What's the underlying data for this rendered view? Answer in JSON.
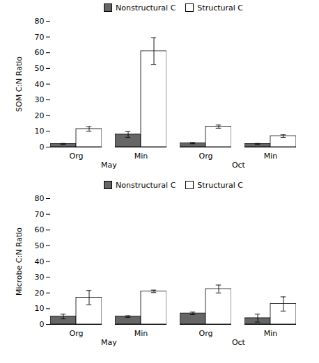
{
  "chart_data": [
    {
      "type": "bar",
      "ylabel": "SOM C:N Ratio",
      "categories": [
        "Org",
        "Min",
        "Org",
        "Min"
      ],
      "category_groups": [
        {
          "label": "May",
          "categories": [
            "Org",
            "Min"
          ]
        },
        {
          "label": "Oct",
          "categories": [
            "Org",
            "Min"
          ]
        }
      ],
      "series": [
        {
          "name": "Nonstructural C",
          "color": "#666666",
          "values": [
            2.0,
            8.0,
            2.5,
            2.0
          ],
          "errors": [
            0.3,
            1.8,
            0.4,
            0.3
          ]
        },
        {
          "name": "Structural C",
          "color": "#ffffff",
          "values": [
            11.5,
            61.0,
            13.0,
            7.0
          ],
          "errors": [
            1.5,
            8.5,
            1.0,
            0.8
          ]
        }
      ],
      "ylim": [
        0,
        80
      ],
      "yticks": [
        0,
        10,
        20,
        30,
        40,
        50,
        60,
        70,
        80
      ],
      "grid": false,
      "legend": "upper center"
    },
    {
      "type": "bar",
      "ylabel": "Microbe C:N Ratio",
      "categories": [
        "Org",
        "Min",
        "Org",
        "Min"
      ],
      "category_groups": [
        {
          "label": "May",
          "categories": [
            "Org",
            "Min"
          ]
        },
        {
          "label": "Oct",
          "categories": [
            "Org",
            "Min"
          ]
        }
      ],
      "series": [
        {
          "name": "Nonstructural C",
          "color": "#666666",
          "values": [
            5.0,
            5.0,
            7.0,
            4.0
          ],
          "errors": [
            1.5,
            0.5,
            0.8,
            2.5
          ]
        },
        {
          "name": "Structural C",
          "color": "#ffffff",
          "values": [
            17.0,
            21.0,
            22.5,
            13.0
          ],
          "errors": [
            4.5,
            0.8,
            2.5,
            4.5
          ]
        }
      ],
      "ylim": [
        0,
        80
      ],
      "yticks": [
        0,
        10,
        20,
        30,
        40,
        50,
        60,
        70,
        80
      ],
      "grid": false,
      "legend": "upper center"
    }
  ]
}
